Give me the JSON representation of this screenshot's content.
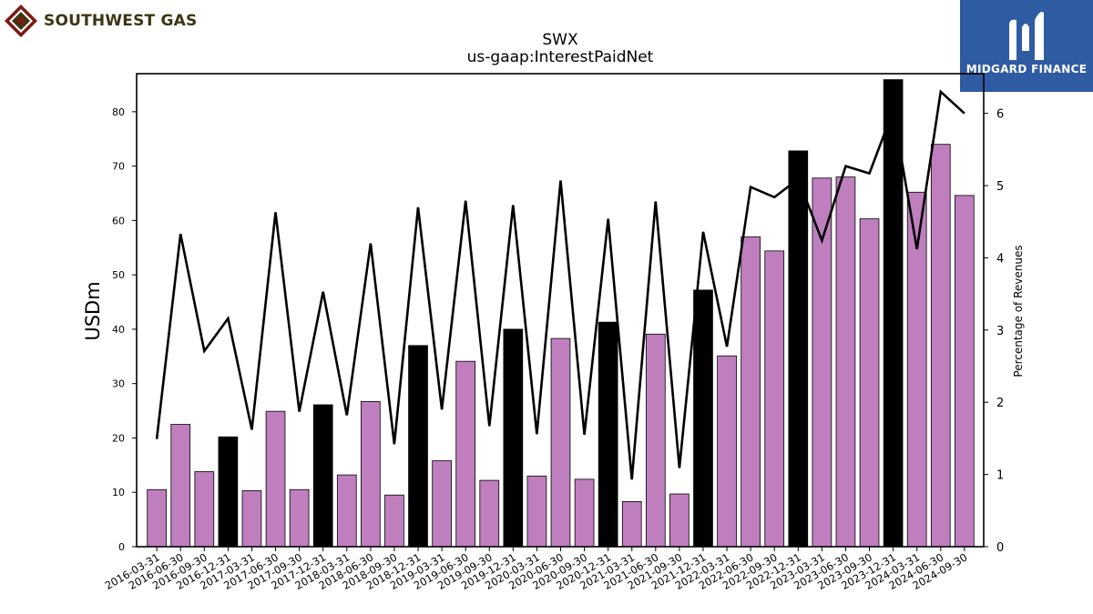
{
  "branding": {
    "company_text": "SOUTHWEST GAS",
    "finance_text": "MIDGARD FINANCE",
    "company_logo_icon": "southwest-gas-diamond-logo-icon",
    "finance_logo_icon": "midgard-m-logo-icon",
    "colors": {
      "company_primary": "#3d3512",
      "company_accent": "#7a1a12",
      "finance_bg": "#2f5ba3"
    }
  },
  "chart_data": {
    "type": "bar",
    "title": "SWX",
    "subtitle": "us-gaap:InterestPaidNet",
    "ylabel": "USDm",
    "y2label": "Percentage of Revenues",
    "ylim": [
      0,
      87
    ],
    "y2lim": [
      0,
      6.55
    ],
    "yticks": [
      0,
      10,
      20,
      30,
      40,
      50,
      60,
      70,
      80
    ],
    "y2ticks": [
      0,
      1,
      2,
      3,
      4,
      5,
      6
    ],
    "grid": false,
    "legend": "none",
    "colors": {
      "bar_default": "#bf7fbf",
      "bar_q4": "#000000",
      "line": "#000000"
    },
    "categories": [
      "2016-03-31",
      "2016-06-30",
      "2016-09-30",
      "2016-12-31",
      "2017-03-31",
      "2017-06-30",
      "2017-09-30",
      "2017-12-31",
      "2018-03-31",
      "2018-06-30",
      "2018-09-30",
      "2018-12-31",
      "2019-03-31",
      "2019-06-30",
      "2019-09-30",
      "2019-12-31",
      "2020-03-31",
      "2020-06-30",
      "2020-09-30",
      "2020-12-31",
      "2021-03-31",
      "2021-06-30",
      "2021-09-30",
      "2021-12-31",
      "2022-03-31",
      "2022-06-30",
      "2022-09-30",
      "2022-12-31",
      "2023-03-31",
      "2023-06-30",
      "2023-09-30",
      "2023-12-31",
      "2024-03-31",
      "2024-06-30",
      "2024-09-30"
    ],
    "series": [
      {
        "kind": "bar",
        "axis": "left",
        "values": [
          10.5,
          22.5,
          13.8,
          20.2,
          10.3,
          24.9,
          10.5,
          26.1,
          13.2,
          26.7,
          9.5,
          37.0,
          15.8,
          34.1,
          12.2,
          40.0,
          13.0,
          38.3,
          12.4,
          41.3,
          8.3,
          39.1,
          9.7,
          47.2,
          35.1,
          57.0,
          54.4,
          72.8,
          67.8,
          68.0,
          60.3,
          85.9,
          65.2,
          74.0,
          64.6
        ]
      },
      {
        "kind": "line",
        "axis": "right",
        "values": [
          1.49,
          4.33,
          2.71,
          3.16,
          1.62,
          4.63,
          1.87,
          3.53,
          1.82,
          4.2,
          1.42,
          4.7,
          1.9,
          4.79,
          1.67,
          4.73,
          1.56,
          5.07,
          1.55,
          4.54,
          0.93,
          4.78,
          1.09,
          4.36,
          2.77,
          4.98,
          4.84,
          5.09,
          4.24,
          5.27,
          5.17,
          6.04,
          4.12,
          6.3,
          6.0
        ]
      }
    ]
  }
}
